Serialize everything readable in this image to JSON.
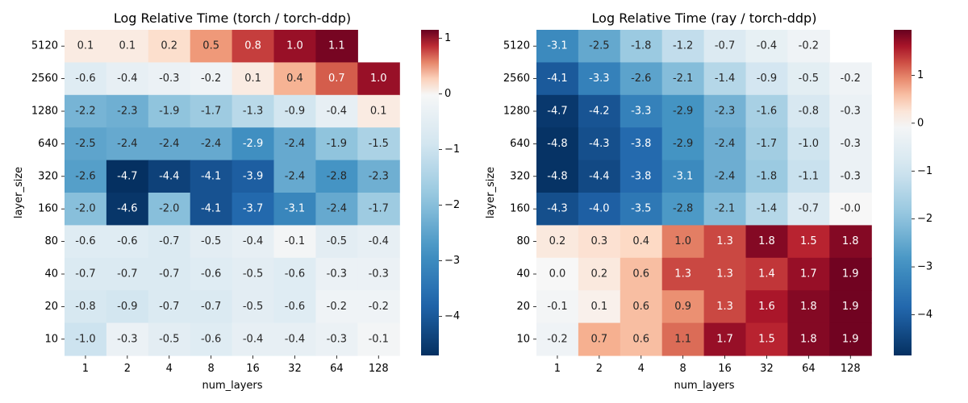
{
  "chart_data": [
    {
      "type": "heatmap",
      "title": "Log Relative Time (torch / torch-ddp)",
      "xlabel": "num_layers",
      "ylabel": "layer_size",
      "x_categories": [
        "1",
        "2",
        "4",
        "8",
        "16",
        "32",
        "64",
        "128"
      ],
      "y_categories": [
        "5120",
        "2560",
        "1280",
        "640",
        "320",
        "160",
        "80",
        "40",
        "20",
        "10"
      ],
      "values": [
        [
          0.1,
          0.1,
          0.2,
          0.5,
          0.8,
          1.0,
          1.1,
          null
        ],
        [
          -0.6,
          -0.4,
          -0.3,
          -0.2,
          0.1,
          0.4,
          0.7,
          1.0
        ],
        [
          -2.2,
          -2.3,
          -1.9,
          -1.7,
          -1.3,
          -0.9,
          -0.4,
          0.1
        ],
        [
          -2.5,
          -2.4,
          -2.4,
          -2.4,
          -2.9,
          -2.4,
          -1.9,
          -1.5
        ],
        [
          -2.6,
          -4.7,
          -4.4,
          -4.1,
          -3.9,
          -2.4,
          -2.8,
          -2.3
        ],
        [
          -2.0,
          -4.6,
          -2.0,
          -4.1,
          -3.7,
          -3.1,
          -2.4,
          -1.7
        ],
        [
          -0.6,
          -0.6,
          -0.7,
          -0.5,
          -0.4,
          -0.1,
          -0.5,
          -0.4
        ],
        [
          -0.7,
          -0.7,
          -0.7,
          -0.6,
          -0.5,
          -0.6,
          -0.3,
          -0.3
        ],
        [
          -0.8,
          -0.9,
          -0.7,
          -0.7,
          -0.5,
          -0.6,
          -0.2,
          -0.2
        ],
        [
          -1.0,
          -0.3,
          -0.5,
          -0.6,
          -0.4,
          -0.4,
          -0.3,
          -0.1
        ]
      ],
      "colormap": "RdBu_r",
      "color_range": [
        -4.7,
        1.15
      ],
      "colorbar_ticks": [
        "1",
        "0",
        "−1",
        "−2",
        "−3",
        "−4"
      ]
    },
    {
      "type": "heatmap",
      "title": "Log Relative Time (ray / torch-ddp)",
      "xlabel": "num_layers",
      "ylabel": "layer_size",
      "x_categories": [
        "1",
        "2",
        "4",
        "8",
        "16",
        "32",
        "64",
        "128"
      ],
      "y_categories": [
        "5120",
        "2560",
        "1280",
        "640",
        "320",
        "160",
        "80",
        "40",
        "20",
        "10"
      ],
      "values": [
        [
          -3.1,
          -2.5,
          -1.8,
          -1.2,
          -0.7,
          -0.4,
          -0.2,
          null
        ],
        [
          -4.1,
          -3.3,
          -2.6,
          -2.1,
          -1.4,
          -0.9,
          -0.5,
          -0.2
        ],
        [
          -4.7,
          -4.2,
          -3.3,
          -2.9,
          -2.3,
          -1.6,
          -0.8,
          -0.3
        ],
        [
          -4.8,
          -4.3,
          -3.8,
          -2.9,
          -2.4,
          -1.7,
          -1.0,
          -0.3
        ],
        [
          -4.8,
          -4.4,
          -3.8,
          -3.1,
          -2.4,
          -1.8,
          -1.1,
          -0.3
        ],
        [
          -4.3,
          -4.0,
          -3.5,
          -2.8,
          -2.1,
          -1.4,
          -0.7,
          "-0.0"
        ],
        [
          0.2,
          0.3,
          0.4,
          1.0,
          1.3,
          1.8,
          1.5,
          1.8
        ],
        [
          0.0,
          0.2,
          0.6,
          1.3,
          1.3,
          1.4,
          1.7,
          1.9
        ],
        [
          -0.1,
          0.1,
          0.6,
          0.9,
          1.3,
          1.6,
          1.8,
          1.9
        ],
        [
          -0.2,
          0.7,
          0.6,
          1.1,
          1.7,
          1.5,
          1.8,
          1.9
        ]
      ],
      "colormap": "RdBu_r",
      "color_range": [
        -4.85,
        1.95
      ],
      "colorbar_ticks": [
        "1",
        "0",
        "−1",
        "−2",
        "−3",
        "−4"
      ]
    }
  ]
}
